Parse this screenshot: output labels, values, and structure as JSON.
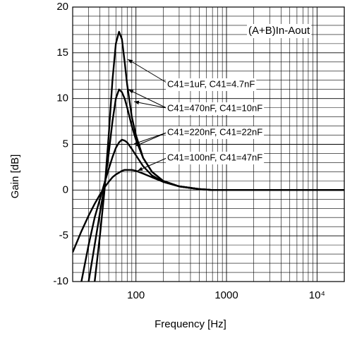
{
  "chart_data": {
    "type": "line",
    "title": "(A+B)In-Aout",
    "x_label": "Frequency   [Hz]",
    "y_label": "Gain   [dB]",
    "x": [
      20,
      25,
      30,
      35,
      40,
      45,
      50,
      55,
      60,
      65,
      70,
      75,
      80,
      90,
      100,
      120,
      150,
      200,
      300,
      500,
      700,
      1000,
      2000,
      5000,
      10000,
      20000
    ],
    "series": [
      {
        "name": "C41=1uF, C41=4.7nF",
        "color": "#000000",
        "values": [
          null,
          null,
          null,
          -10,
          -5,
          0,
          6,
          12,
          16,
          17.3,
          16.5,
          14,
          11.5,
          8,
          6,
          3.5,
          2,
          1,
          0.4,
          0.1,
          0,
          0,
          0,
          0,
          0,
          0
        ]
      },
      {
        "name": "C41=470nF, C41=10nF",
        "color": "#000000",
        "values": [
          null,
          null,
          -10,
          -6,
          -2.5,
          0.5,
          4,
          7.5,
          10,
          11,
          10.7,
          10,
          9,
          7,
          5.5,
          3.5,
          2,
          1,
          0.4,
          0.1,
          0,
          0,
          0,
          0,
          0,
          0
        ]
      },
      {
        "name": "C41=220nF, C41=22nF",
        "color": "#000000",
        "values": [
          null,
          -10,
          -6,
          -3,
          -1,
          0.8,
          2.3,
          3.6,
          4.6,
          5.2,
          5.5,
          5.4,
          5.2,
          4.5,
          3.8,
          2.6,
          1.6,
          0.9,
          0.4,
          0.1,
          0,
          0,
          0,
          0,
          0,
          0
        ]
      },
      {
        "name": "C41=100nF, C41=47nF",
        "color": "#000000",
        "values": [
          -6.8,
          -4.5,
          -2.8,
          -1.5,
          -0.5,
          0.3,
          0.9,
          1.4,
          1.7,
          1.9,
          2.1,
          2.2,
          2.2,
          2.2,
          2.1,
          1.8,
          1.4,
          0.9,
          0.4,
          0.1,
          0,
          0,
          0,
          0,
          0,
          0
        ]
      }
    ],
    "xlim": [
      20,
      20000
    ],
    "ylim": [
      -10,
      20
    ],
    "x_log": true,
    "grid": true,
    "xticks": [
      100,
      1000,
      {
        "value": 10000,
        "label": "10⁴"
      }
    ],
    "yticks": [
      -10,
      -5,
      0,
      5,
      10,
      15,
      20
    ],
    "xminorticks": [
      30,
      40,
      50,
      60,
      70,
      80,
      90,
      200,
      300,
      400,
      500,
      600,
      700,
      800,
      900,
      2000,
      3000,
      4000,
      5000,
      6000,
      7000,
      8000,
      9000
    ],
    "yminorticks": [
      -9,
      -8,
      -7,
      -6,
      -4,
      -3,
      -2,
      -1,
      1,
      2,
      3,
      4,
      6,
      7,
      8,
      9,
      11,
      12,
      13,
      14,
      16,
      17,
      18,
      19
    ]
  }
}
